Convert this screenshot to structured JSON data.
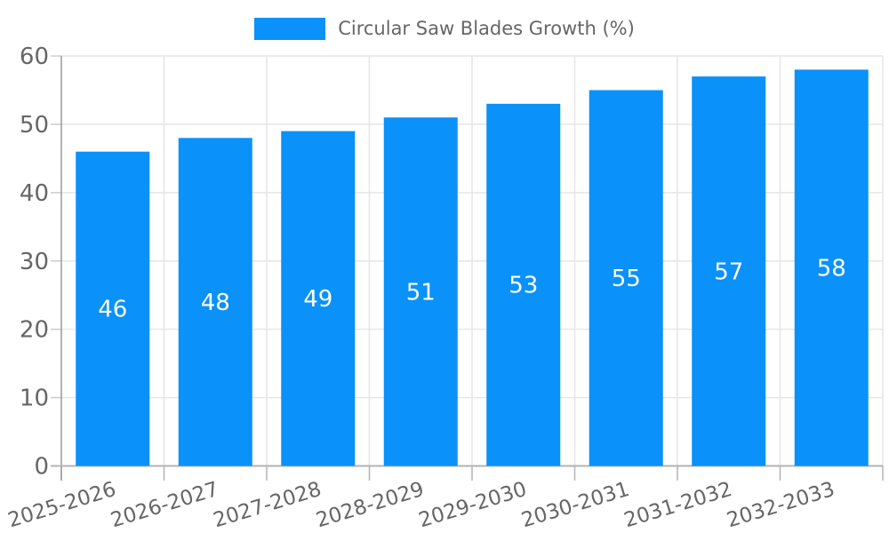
{
  "legend": {
    "label": "Circular Saw Blades Growth (%)"
  },
  "chart_data": {
    "type": "bar",
    "title": "Circular Saw Blades Growth (%)",
    "categories": [
      "2025-2026",
      "2026-2027",
      "2027-2028",
      "2028-2029",
      "2029-2030",
      "2030-2031",
      "2031-2032",
      "2032-2033"
    ],
    "series": [
      {
        "name": "Circular Saw Blades Growth (%)",
        "values": [
          46,
          48,
          49,
          51,
          53,
          55,
          57,
          58
        ]
      }
    ],
    "xlabel": "",
    "ylabel": "",
    "ylim": [
      0,
      60
    ],
    "yticks": [
      0,
      10,
      20,
      30,
      40,
      50,
      60
    ],
    "grid": true,
    "legend_position": "top",
    "value_labels": "inside-center",
    "colors": {
      "bar": "#0a91fa",
      "value_label": "#ffffff",
      "tick_text": "#666666",
      "grid_line": "#e6e6e6",
      "axis_line": "#999999",
      "baseline": "#b3b3b3",
      "y_tick": "#cccccc",
      "background": "#ffffff"
    }
  }
}
